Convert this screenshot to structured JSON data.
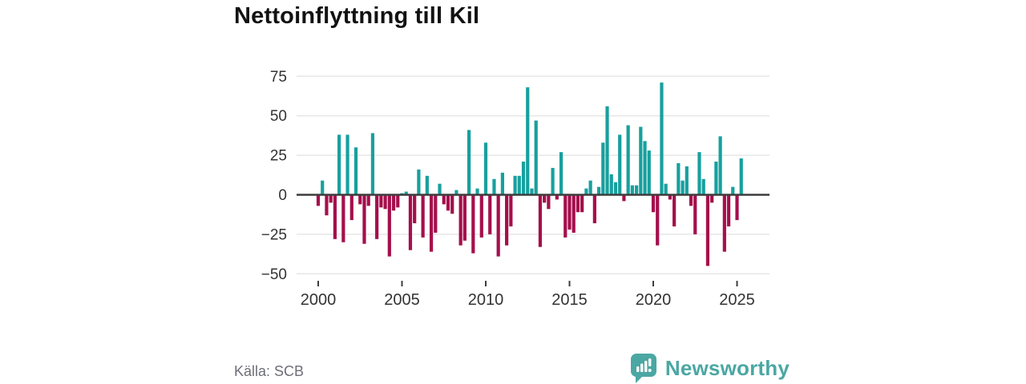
{
  "header": {
    "title": "Nettoinflyttning till Kil"
  },
  "footer": {
    "source": "Källa: SCB",
    "brand": "Newsworthy"
  },
  "colors": {
    "positive": "#17a09e",
    "negative": "#a50f4c",
    "gridline": "#e7e7e7",
    "zero_line": "#3d3d3d",
    "axis_label": "#333333",
    "brand_teal": "#4ba7a3"
  },
  "chart_data": {
    "type": "bar",
    "title": "Nettoinflyttning till Kil",
    "frequency": "quarterly",
    "x_start": {
      "year": 2000,
      "quarter": 1
    },
    "x_end": {
      "year": 2025,
      "quarter": 2
    },
    "values": [
      -7,
      9,
      -13,
      -5,
      -28,
      38,
      -30,
      38,
      -16,
      30,
      -6,
      -31,
      -7,
      39,
      -28,
      -8,
      -9,
      -39,
      -10,
      -8,
      1,
      2,
      -35,
      -18,
      16,
      -27,
      12,
      -36,
      -24,
      7,
      -6,
      -10,
      -12,
      3,
      -32,
      -29,
      41,
      -37,
      4,
      -27,
      33,
      -25,
      10,
      -39,
      14,
      -32,
      -20,
      12,
      12,
      21,
      68,
      4,
      47,
      -33,
      -5,
      -9,
      17,
      -3,
      27,
      -27,
      -22,
      -24,
      -11,
      -11,
      4,
      9,
      -18,
      5,
      33,
      56,
      13,
      8,
      38,
      -4,
      44,
      6,
      6,
      43,
      34,
      28,
      -11,
      -32,
      71,
      7,
      -3,
      -20,
      20,
      9,
      18,
      -7,
      -25,
      27,
      10,
      -45,
      -5,
      21,
      37,
      -36,
      -20,
      5,
      -16,
      23
    ],
    "x_tick_years": [
      "2000",
      "2005",
      "2010",
      "2015",
      "2020",
      "2025"
    ],
    "y_ticks": [
      75,
      50,
      25,
      0,
      -25,
      -50
    ],
    "y_tick_labels": [
      "75",
      "50",
      "25",
      "0",
      "−25",
      "−50"
    ],
    "ylim": [
      -50,
      75
    ],
    "grid": true,
    "legend_position": "none",
    "xlabel": "",
    "ylabel": ""
  }
}
